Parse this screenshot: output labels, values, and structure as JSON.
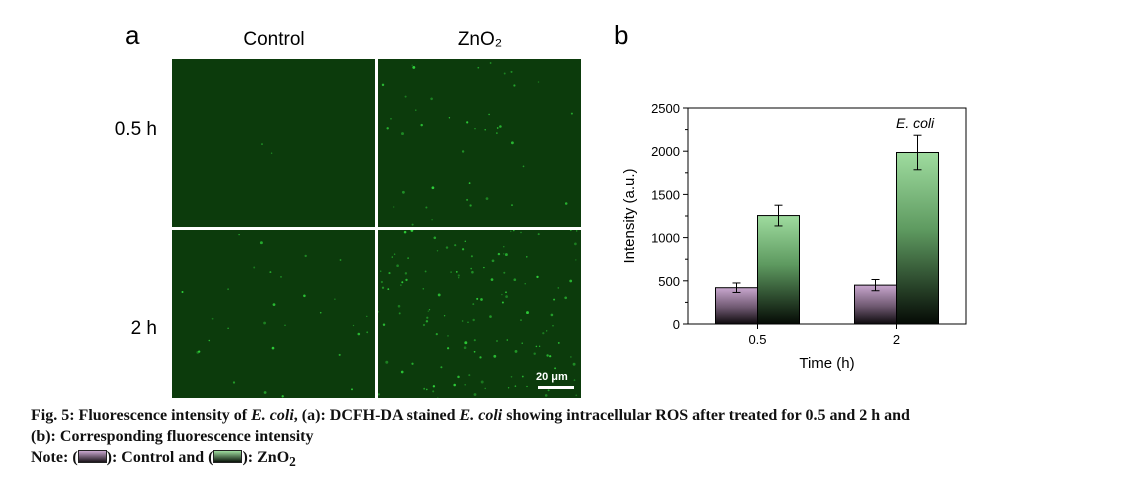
{
  "panel_a": {
    "letter": "a",
    "columns": [
      "Control",
      "ZnO₂"
    ],
    "rows": [
      "0.5 h",
      "2 h"
    ],
    "scale_bar": "20 μm",
    "image_tint": "#0c3b0c",
    "dot_color": "#2fd13a"
  },
  "panel_b": {
    "letter": "b"
  },
  "chart_data": {
    "type": "bar",
    "categories": [
      "0.5",
      "2"
    ],
    "series": [
      {
        "name": "Control",
        "values": [
          420,
          450
        ],
        "errors": [
          55,
          65
        ],
        "color": "#b48ab4"
      },
      {
        "name": "ZnO₂",
        "values": [
          1255,
          1985
        ],
        "errors": [
          120,
          200
        ],
        "color": "#8fd38f"
      }
    ],
    "xlabel": "Time (h)",
    "ylabel": "Intensity (a.u.)",
    "ylim": [
      0,
      2500
    ],
    "yticks": [
      "0",
      "500",
      "1000",
      "1500",
      "2000",
      "2500"
    ],
    "annotation": "E. coli",
    "grid": false
  },
  "caption": {
    "fig": "Fig. 5: Fluorescence intensity of ",
    "ecoli": "E. coli",
    "p1": ", (a): DCFH-DA stained ",
    "p2": " showing intracellular ROS after treated for 0.5 and 2 h and",
    "line2": "(b): Corresponding fluorescence intensity",
    "note_prefix": "Note: (",
    "note_mid": "): Control and (",
    "note_end": "): ZnO",
    "note_sub": "2"
  }
}
